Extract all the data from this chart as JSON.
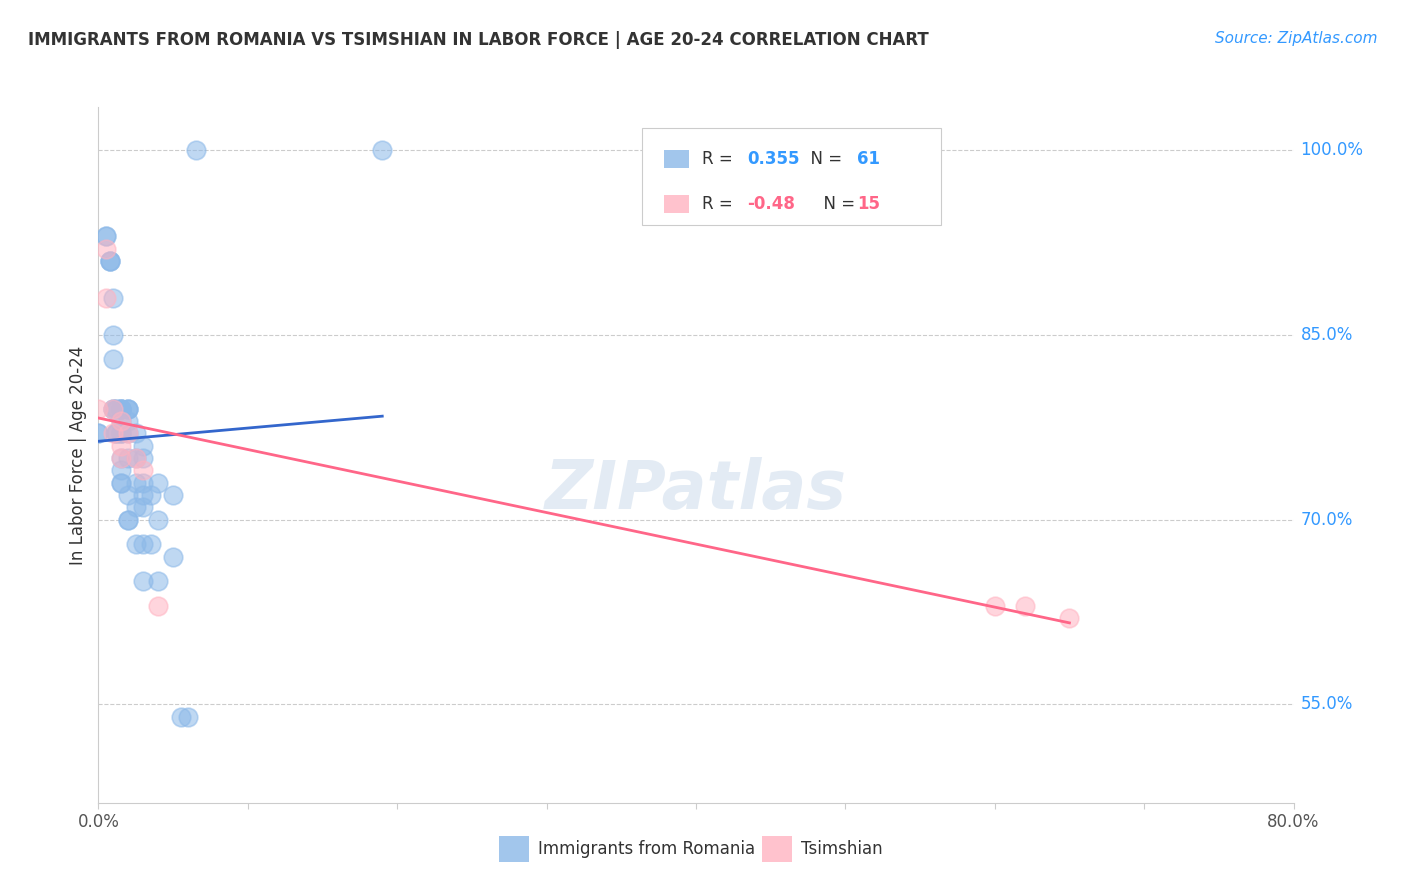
{
  "title": "IMMIGRANTS FROM ROMANIA VS TSIMSHIAN IN LABOR FORCE | AGE 20-24 CORRELATION CHART",
  "source": "Source: ZipAtlas.com",
  "ylabel": "In Labor Force | Age 20-24",
  "y_tick_labels_right": [
    "100.0%",
    "85.0%",
    "70.0%",
    "55.0%"
  ],
  "y_ticks_right": [
    1.0,
    0.85,
    0.7,
    0.55
  ],
  "xlim": [
    0.0,
    0.8
  ],
  "ylim": [
    0.47,
    1.035
  ],
  "romania_R": 0.355,
  "romania_N": 61,
  "tsimshian_R": -0.48,
  "tsimshian_N": 15,
  "blue_color": "#8BB8E8",
  "pink_color": "#FFB3C1",
  "blue_line_color": "#3366CC",
  "pink_line_color": "#FF6688",
  "watermark": "ZIPatlas",
  "romania_x": [
    0.0,
    0.0,
    0.005,
    0.005,
    0.008,
    0.008,
    0.008,
    0.01,
    0.01,
    0.01,
    0.01,
    0.01,
    0.012,
    0.012,
    0.012,
    0.012,
    0.012,
    0.015,
    0.015,
    0.015,
    0.015,
    0.015,
    0.015,
    0.015,
    0.015,
    0.015,
    0.015,
    0.015,
    0.015,
    0.02,
    0.02,
    0.02,
    0.02,
    0.02,
    0.02,
    0.02,
    0.02,
    0.02,
    0.025,
    0.025,
    0.025,
    0.025,
    0.025,
    0.03,
    0.03,
    0.03,
    0.03,
    0.03,
    0.03,
    0.03,
    0.035,
    0.035,
    0.04,
    0.04,
    0.04,
    0.05,
    0.05,
    0.055,
    0.06,
    0.065,
    0.19
  ],
  "romania_y": [
    0.77,
    0.77,
    0.93,
    0.93,
    0.91,
    0.91,
    0.91,
    0.88,
    0.85,
    0.83,
    0.79,
    0.79,
    0.79,
    0.79,
    0.77,
    0.77,
    0.77,
    0.79,
    0.79,
    0.79,
    0.79,
    0.78,
    0.77,
    0.77,
    0.77,
    0.75,
    0.74,
    0.73,
    0.73,
    0.79,
    0.79,
    0.79,
    0.78,
    0.77,
    0.75,
    0.72,
    0.7,
    0.7,
    0.77,
    0.75,
    0.73,
    0.71,
    0.68,
    0.76,
    0.75,
    0.73,
    0.72,
    0.71,
    0.68,
    0.65,
    0.72,
    0.68,
    0.73,
    0.7,
    0.65,
    0.72,
    0.67,
    0.54,
    0.54,
    1.0,
    1.0
  ],
  "tsimshian_x": [
    0.0,
    0.005,
    0.005,
    0.01,
    0.01,
    0.015,
    0.015,
    0.015,
    0.02,
    0.025,
    0.03,
    0.04,
    0.6,
    0.62,
    0.65
  ],
  "tsimshian_y": [
    0.79,
    0.92,
    0.88,
    0.79,
    0.77,
    0.78,
    0.76,
    0.75,
    0.77,
    0.75,
    0.74,
    0.63,
    0.63,
    0.63,
    0.62
  ]
}
